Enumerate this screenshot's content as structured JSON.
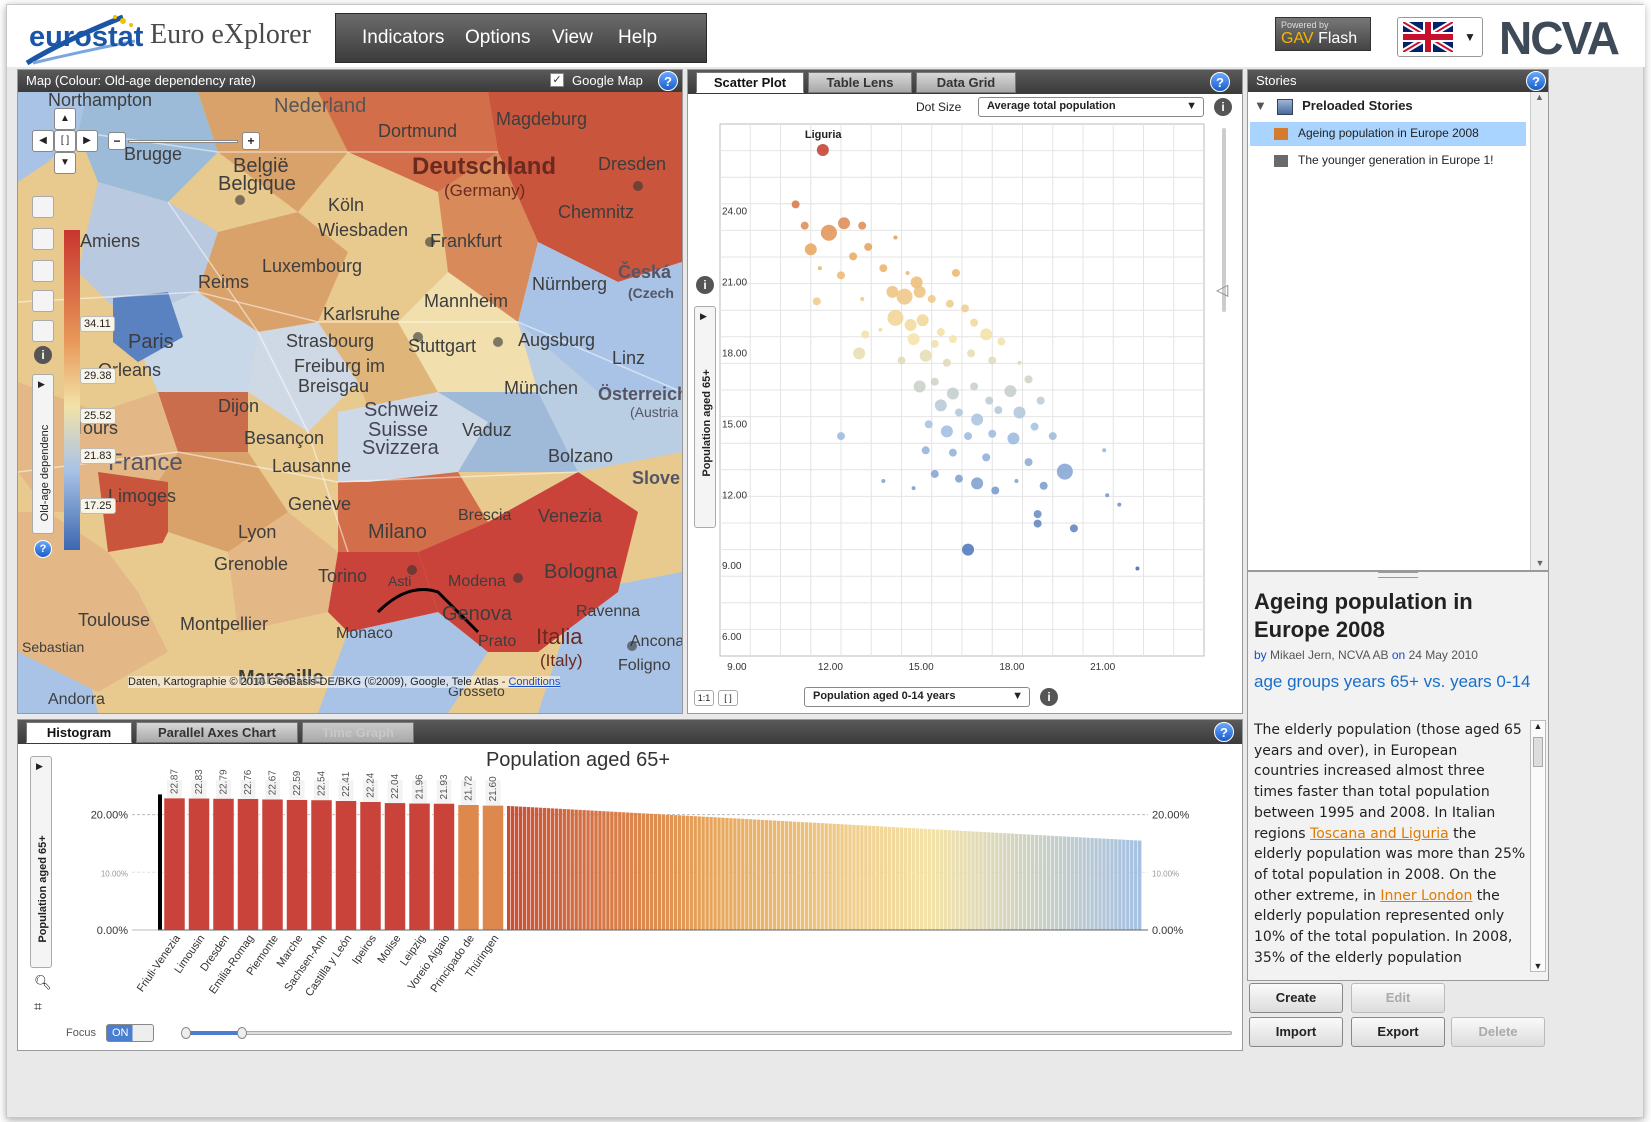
{
  "app": {
    "brand": "eurostat",
    "title": "Euro eXplorer"
  },
  "menu": [
    "Indicators",
    "Options",
    "View",
    "Help"
  ],
  "powered": {
    "line1": "Powered by",
    "gav": "GAV",
    "flash": "Flash"
  },
  "logo_right": "NCVA",
  "map": {
    "title": "Map (Colour: Old-age dependency rate)",
    "google_map_label": "Google Map",
    "google_map_checked": true,
    "legend_title": "Old-age dependenc",
    "legend_values": [
      "34.11",
      "29.38",
      "25.52",
      "21.83",
      "17.25"
    ],
    "attribution": "Daten, Kartographie © 2010 GeoBasis-DE/BKG (©2009), Google, Tele Atlas -",
    "attribution_link": "Conditions",
    "places": [
      {
        "n": "Northampton"
      },
      {
        "n": "Nederland"
      },
      {
        "n": "Dortmund"
      },
      {
        "n": "Magdeburg"
      },
      {
        "n": "Brugge"
      },
      {
        "n": "België"
      },
      {
        "n": "Belgique"
      },
      {
        "n": "Deutschland"
      },
      {
        "n": "(Germany)"
      },
      {
        "n": "Dresden"
      },
      {
        "n": "Köln"
      },
      {
        "n": "Chemnitz"
      },
      {
        "n": "Amiens"
      },
      {
        "n": "Wiesbaden"
      },
      {
        "n": "Frankfurt"
      },
      {
        "n": "Luxembourg"
      },
      {
        "n": "Česká"
      },
      {
        "n": "(Czech"
      },
      {
        "n": "Reims"
      },
      {
        "n": "Nürnberg"
      },
      {
        "n": "Karlsruhe"
      },
      {
        "n": "Mannheim"
      },
      {
        "n": "Paris"
      },
      {
        "n": "Strasbourg"
      },
      {
        "n": "Stuttgart"
      },
      {
        "n": "Augsburg"
      },
      {
        "n": "Linz"
      },
      {
        "n": "Orleans"
      },
      {
        "n": "Freiburg im"
      },
      {
        "n": "Breisgau"
      },
      {
        "n": "München"
      },
      {
        "n": "Österreich"
      },
      {
        "n": "(Austria"
      },
      {
        "n": "Dijon"
      },
      {
        "n": "Schweiz"
      },
      {
        "n": "Suisse"
      },
      {
        "n": "Vaduz"
      },
      {
        "n": "Besançon"
      },
      {
        "n": "Tours"
      },
      {
        "n": "Svizzera"
      },
      {
        "n": "France"
      },
      {
        "n": "Lausanne"
      },
      {
        "n": "Bolzano"
      },
      {
        "n": "Slove"
      },
      {
        "n": "Limoges"
      },
      {
        "n": "Genève"
      },
      {
        "n": "Brescia"
      },
      {
        "n": "Venezia"
      },
      {
        "n": "Lyon"
      },
      {
        "n": "Milano"
      },
      {
        "n": "Grenoble"
      },
      {
        "n": "Torino"
      },
      {
        "n": "Asti"
      },
      {
        "n": "Modena"
      },
      {
        "n": "Bologna"
      },
      {
        "n": "Genova"
      },
      {
        "n": "Ravenna"
      },
      {
        "n": "Toulouse"
      },
      {
        "n": "Montpellier"
      },
      {
        "n": "Monaco"
      },
      {
        "n": "Prato"
      },
      {
        "n": "Italia"
      },
      {
        "n": "(Italy)"
      },
      {
        "n": "Ancona"
      },
      {
        "n": "Foligno"
      },
      {
        "n": "Marseille"
      },
      {
        "n": "Grosseto"
      },
      {
        "n": "Andorra"
      },
      {
        "n": "Sebastian"
      }
    ]
  },
  "scatter": {
    "tabs": [
      "Scatter Plot",
      "Table Lens",
      "Data Grid"
    ],
    "dot_size_label": "Dot Size",
    "dot_size_value": "Average total population",
    "highlight_label": "Liguria",
    "x_select": "Population aged 0-14 years",
    "y_label": "Population aged 65+",
    "zoom_buttons": [
      "1:1",
      "[ ]"
    ]
  },
  "stories": {
    "title": "Stories",
    "folder": "Preloaded Stories",
    "items": [
      "Ageing population in Europe 2008",
      "The younger generation in Europe 1!"
    ],
    "selected_index": 0,
    "story_title": "Ageing population in Europe 2008",
    "byline_by": "by",
    "byline_author": "Mikael Jern, NCVA AB",
    "byline_on": "on",
    "byline_date": "24 May 2010",
    "story_subtitle": "age groups years 65+ vs. years 0-14",
    "body_1": "The elderly population (those aged 65 years and over), in European countries increased almost three times faster than total population between 1995 and 2008. In Italian regions ",
    "link_1": "Toscana and Liguria",
    "body_2": " the elderly population was more than 25% of total population in 2008. On the other extreme, in ",
    "link_2": "Inner London",
    "body_3": " the elderly population represented only 10% of the total population. In 2008, 35% of the elderly population",
    "buttons": {
      "create": "Create",
      "edit": "Edit",
      "import": "Import",
      "export": "Export",
      "delete": "Delete"
    }
  },
  "histogram": {
    "tabs": [
      "Histogram",
      "Parallel Axes Chart",
      "Time Graph"
    ],
    "focus_label": "Focus",
    "focus_toggle": "ON",
    "y_side_label": "Population aged 65+"
  },
  "colors": {
    "accent": "#1a5ec8",
    "high": "#c0392b",
    "mid": "#f4e3a8",
    "low": "#4a78b8"
  },
  "chart_data": [
    {
      "type": "scatter",
      "title": "",
      "xlabel": "Population aged 0-14 years",
      "ylabel": "Population aged 65+",
      "x_ticks": [
        "9.00",
        "12.00",
        "15.00",
        "18.00",
        "21.00"
      ],
      "y_ticks": [
        "6.00",
        "9.00",
        "12.00",
        "15.00",
        "18.00",
        "21.00",
        "24.00"
      ],
      "xlim": [
        8.5,
        24.5
      ],
      "ylim": [
        5.5,
        28
      ],
      "annotation": "Liguria",
      "points": [
        [
          11.9,
          26.9,
          3
        ],
        [
          11.0,
          24.6,
          2
        ],
        [
          11.3,
          23.7,
          2
        ],
        [
          12.1,
          23.4,
          4
        ],
        [
          12.6,
          23.8,
          3
        ],
        [
          13.2,
          23.7,
          2
        ],
        [
          14.3,
          23.2,
          1
        ],
        [
          11.5,
          22.7,
          3
        ],
        [
          12.9,
          22.4,
          2
        ],
        [
          13.4,
          22.8,
          2
        ],
        [
          11.8,
          21.9,
          1
        ],
        [
          12.5,
          21.6,
          2
        ],
        [
          13.9,
          21.9,
          2
        ],
        [
          14.7,
          21.7,
          1
        ],
        [
          15.0,
          21.3,
          3
        ],
        [
          16.3,
          21.7,
          2
        ],
        [
          14.2,
          20.9,
          3
        ],
        [
          14.6,
          20.7,
          4
        ],
        [
          15.1,
          20.9,
          3
        ],
        [
          15.5,
          20.6,
          2
        ],
        [
          11.7,
          20.5,
          2
        ],
        [
          13.2,
          20.6,
          1
        ],
        [
          16.1,
          20.4,
          2
        ],
        [
          16.6,
          20.2,
          2
        ],
        [
          14.3,
          19.8,
          4
        ],
        [
          14.8,
          19.5,
          3
        ],
        [
          15.2,
          19.7,
          3
        ],
        [
          15.8,
          19.2,
          2
        ],
        [
          16.9,
          19.6,
          2
        ],
        [
          17.3,
          19.1,
          3
        ],
        [
          17.8,
          18.8,
          2
        ],
        [
          13.3,
          19.1,
          2
        ],
        [
          13.8,
          19.3,
          1
        ],
        [
          14.9,
          18.9,
          3
        ],
        [
          15.6,
          18.7,
          2
        ],
        [
          16.2,
          18.9,
          2
        ],
        [
          13.1,
          18.3,
          3
        ],
        [
          14.5,
          18.0,
          2
        ],
        [
          15.3,
          18.2,
          3
        ],
        [
          16.0,
          17.9,
          2
        ],
        [
          16.8,
          18.3,
          2
        ],
        [
          17.5,
          18.0,
          2
        ],
        [
          18.4,
          17.9,
          1
        ],
        [
          15.1,
          16.9,
          3
        ],
        [
          15.6,
          17.1,
          2
        ],
        [
          16.2,
          16.6,
          3
        ],
        [
          16.9,
          16.9,
          2
        ],
        [
          17.4,
          16.3,
          2
        ],
        [
          18.1,
          16.7,
          3
        ],
        [
          18.7,
          17.2,
          2
        ],
        [
          15.8,
          16.1,
          3
        ],
        [
          16.4,
          15.8,
          2
        ],
        [
          17.0,
          15.5,
          3
        ],
        [
          17.7,
          15.9,
          2
        ],
        [
          18.4,
          15.8,
          3
        ],
        [
          19.1,
          16.3,
          2
        ],
        [
          15.4,
          15.3,
          2
        ],
        [
          16.0,
          15.0,
          3
        ],
        [
          16.7,
          14.8,
          2
        ],
        [
          17.5,
          14.9,
          2
        ],
        [
          18.2,
          14.7,
          3
        ],
        [
          18.9,
          15.2,
          2
        ],
        [
          19.5,
          14.8,
          2
        ],
        [
          12.5,
          14.8,
          2
        ],
        [
          15.3,
          14.2,
          2
        ],
        [
          16.2,
          14.1,
          2
        ],
        [
          17.3,
          13.9,
          2
        ],
        [
          18.7,
          13.7,
          2
        ],
        [
          15.6,
          13.2,
          2
        ],
        [
          16.4,
          13.0,
          2
        ],
        [
          17.0,
          12.8,
          3
        ],
        [
          17.6,
          12.5,
          2
        ],
        [
          19.2,
          12.7,
          2
        ],
        [
          19.9,
          13.3,
          4
        ],
        [
          13.9,
          12.9,
          1
        ],
        [
          14.9,
          12.6,
          1
        ],
        [
          18.3,
          12.9,
          1
        ],
        [
          21.2,
          14.2,
          1
        ],
        [
          21.3,
          12.3,
          1
        ],
        [
          21.7,
          11.9,
          1
        ],
        [
          19.0,
          11.5,
          2
        ],
        [
          19.0,
          11.1,
          2
        ],
        [
          20.2,
          10.9,
          2
        ],
        [
          16.7,
          10.0,
          3
        ],
        [
          22.3,
          9.2,
          1
        ]
      ]
    },
    {
      "type": "bar",
      "title": "Population aged 65+",
      "y_ticks": [
        "0.00%",
        "10.00%",
        "20.00%"
      ],
      "ylim": [
        0,
        26
      ],
      "categories": [
        "Friuli-Venezia",
        "Limousin",
        "Dresden",
        "Emilia-Romag",
        "Piemonte",
        "Marche",
        "Sachsen-Anh",
        "Castilla y León",
        "Ipeiros",
        "Molise",
        "Leipzig",
        "Voreio Aigaio",
        "Principado de",
        "Thüringen"
      ],
      "values": [
        22.87,
        22.83,
        22.79,
        22.76,
        22.67,
        22.59,
        22.54,
        22.41,
        22.24,
        22.04,
        21.96,
        21.93,
        21.72,
        21.6
      ],
      "tail": {
        "count": 160,
        "start": 21.5,
        "end": 15.5
      }
    }
  ]
}
